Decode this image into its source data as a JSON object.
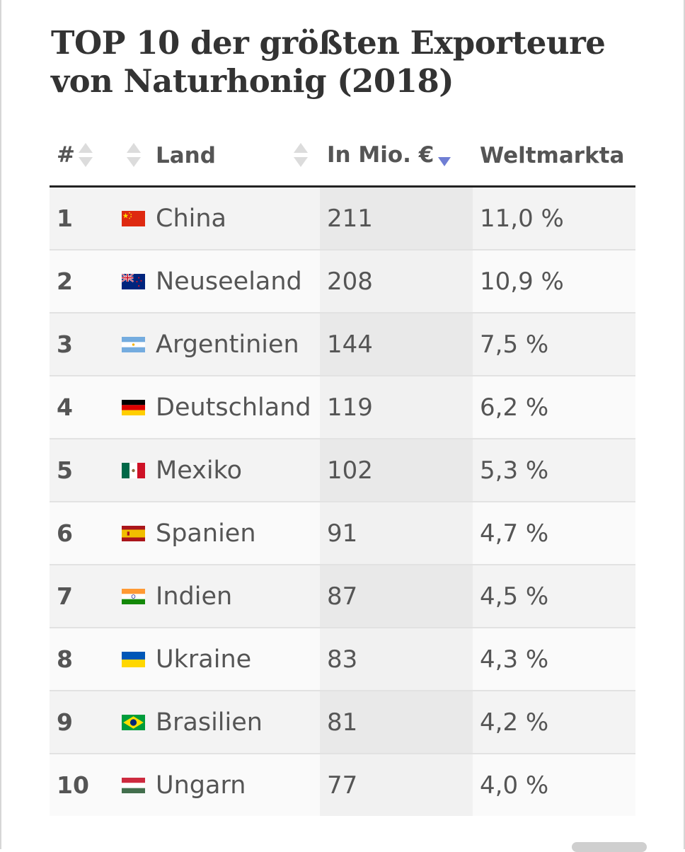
{
  "title": "TOP 10 der größten Exporteure von Naturhonig (2018)",
  "table": {
    "headers": {
      "rank": "#",
      "flag": "",
      "land": "Land",
      "value": "In Mio. €",
      "share": "Weltmarkta"
    },
    "sorted_by": "In Mio. €",
    "sort_direction": "descending",
    "rows": [
      {
        "rank": "1",
        "flag_icon": "china-flag-icon",
        "land": "China",
        "value": "211",
        "share": "11,0 %"
      },
      {
        "rank": "2",
        "flag_icon": "new-zealand-flag-icon",
        "land": "Neuseeland",
        "value": "208",
        "share": "10,9 %"
      },
      {
        "rank": "3",
        "flag_icon": "argentina-flag-icon",
        "land": "Argentinien",
        "value": "144",
        "share": "7,5 %"
      },
      {
        "rank": "4",
        "flag_icon": "germany-flag-icon",
        "land": "Deutschland",
        "value": "119",
        "share": "6,2 %"
      },
      {
        "rank": "5",
        "flag_icon": "mexico-flag-icon",
        "land": "Mexiko",
        "value": "102",
        "share": "5,3 %"
      },
      {
        "rank": "6",
        "flag_icon": "spain-flag-icon",
        "land": "Spanien",
        "value": "91",
        "share": "4,7 %"
      },
      {
        "rank": "7",
        "flag_icon": "india-flag-icon",
        "land": "Indien",
        "value": "87",
        "share": "4,5 %"
      },
      {
        "rank": "8",
        "flag_icon": "ukraine-flag-icon",
        "land": "Ukraine",
        "value": "83",
        "share": "4,3 %"
      },
      {
        "rank": "9",
        "flag_icon": "brazil-flag-icon",
        "land": "Brasilien",
        "value": "81",
        "share": "4,2 %"
      },
      {
        "rank": "10",
        "flag_icon": "hungary-flag-icon",
        "land": "Ungarn",
        "value": "77",
        "share": "4,0 %"
      }
    ]
  },
  "colors": {
    "sort_active": "#6f7ed4",
    "sort_inactive": "#dcdcdc",
    "header_rule": "#222222"
  }
}
